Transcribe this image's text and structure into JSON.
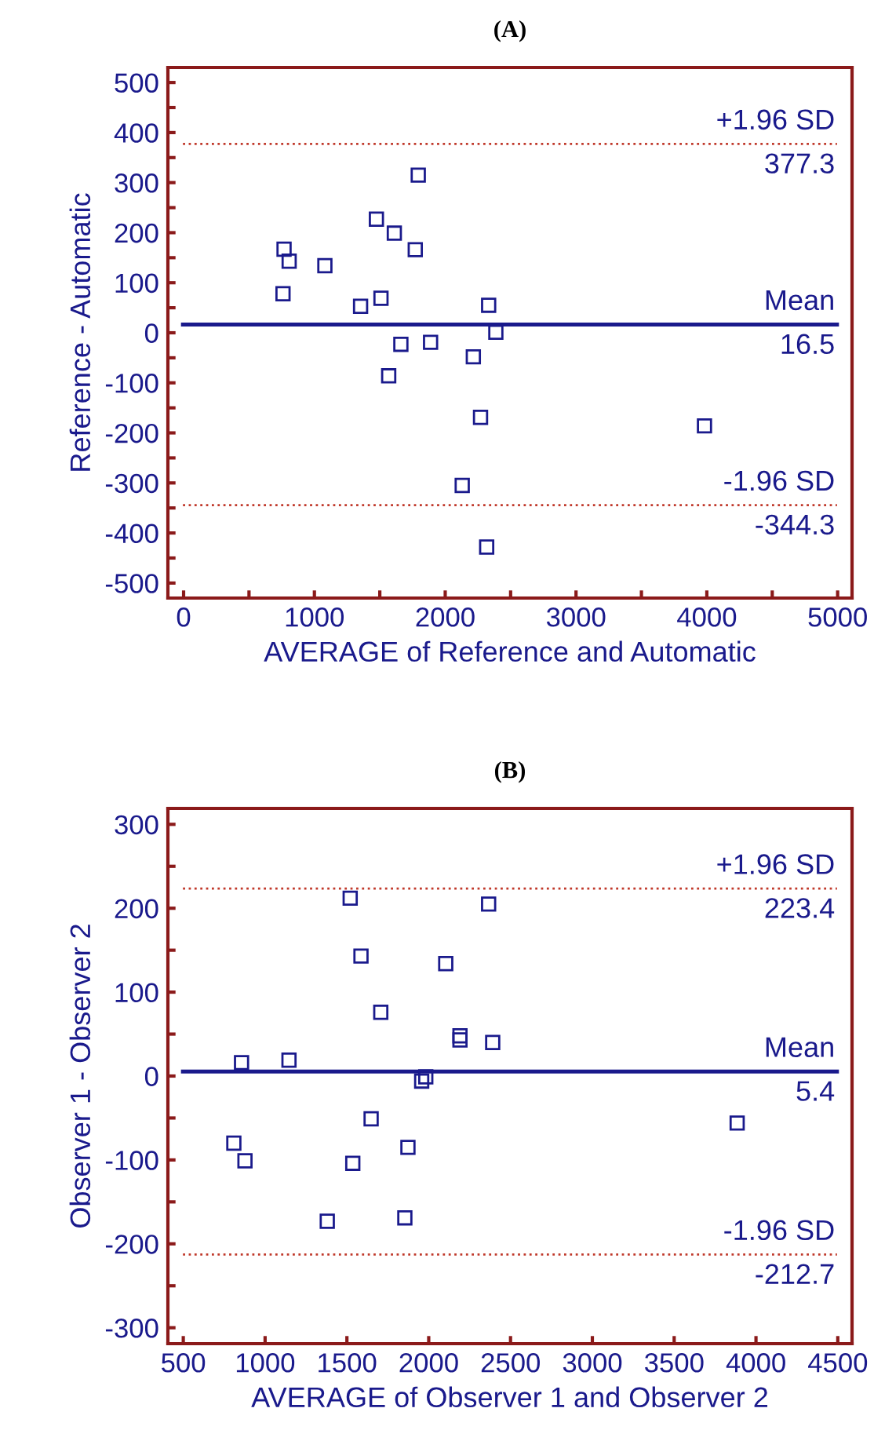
{
  "chart_data": [
    {
      "type": "scatter",
      "title": "(A)",
      "xlabel": "AVERAGE of Reference and Automatic",
      "ylabel": "Reference - Automatic",
      "marker": "square",
      "grid": false,
      "legend": false,
      "x": [
        768,
        807,
        1080,
        760,
        1353,
        1509,
        1474,
        1611,
        1771,
        1794,
        2332,
        2387,
        1661,
        1888,
        2215,
        1568,
        2270,
        2130,
        2317,
        3982
      ],
      "series": [
        {
          "color": "#1a1a8c",
          "values": [
            167,
            143,
            134,
            78,
            53,
            69,
            227,
            199,
            166,
            315,
            55,
            1,
            -23,
            -19,
            -48,
            -86,
            -169,
            -305,
            -428,
            -186
          ]
        }
      ],
      "xlim": [
        -120,
        5110
      ],
      "ylim": [
        -530,
        530
      ],
      "xticks": [
        0,
        {
          "value": 500,
          "label": null
        },
        1000,
        {
          "value": 1500,
          "label": null
        },
        2000,
        {
          "value": 2500,
          "label": null
        },
        3000,
        {
          "value": 3500,
          "label": null
        },
        4000,
        {
          "value": 4500,
          "label": null
        },
        5000
      ],
      "yticks": [
        {
          "value": -500,
          "label": "-500"
        },
        {
          "value": -450,
          "label": null
        },
        {
          "value": -400,
          "label": "-400"
        },
        {
          "value": -350,
          "label": null
        },
        {
          "value": -300,
          "label": "-300"
        },
        {
          "value": -250,
          "label": null
        },
        {
          "value": -200,
          "label": "-200"
        },
        {
          "value": -150,
          "label": null
        },
        {
          "value": -100,
          "label": "-100"
        },
        {
          "value": -50,
          "label": null
        },
        0,
        {
          "value": 50,
          "label": null
        },
        100,
        {
          "value": 150,
          "label": null
        },
        200,
        {
          "value": 250,
          "label": null
        },
        300,
        {
          "value": 350,
          "label": null
        },
        400,
        {
          "value": 450,
          "label": null
        },
        500
      ],
      "ref_lines": [
        {
          "axis": "y",
          "value": 377.3,
          "label": "+1.96 SD",
          "color": "#c0392b",
          "line_style": "dotted"
        },
        {
          "axis": "y",
          "value": 16.5,
          "label": "Mean",
          "color": "#1a1a8c",
          "line_style": "solid"
        },
        {
          "axis": "y",
          "value": -344.3,
          "label": "-1.96 SD",
          "color": "#c0392b",
          "line_style": "dotted"
        }
      ],
      "annotations": [
        "377.3",
        "16.5",
        "-344.3"
      ]
    },
    {
      "type": "scatter",
      "title": "(B)",
      "xlabel": "AVERAGE of Observer 1 and Observer 2",
      "ylabel": "Observer 1 - Observer 2",
      "marker": "square",
      "grid": false,
      "legend": false,
      "x": [
        1520,
        2366,
        1586,
        2104,
        1707,
        2191,
        2191,
        2391,
        856,
        1146,
        1982,
        1957,
        1648,
        3885,
        809,
        877,
        1536,
        1873,
        1380,
        1854
      ],
      "series": [
        {
          "color": "#1a1a8c",
          "values": [
            212,
            205,
            143,
            134,
            76,
            48,
            43,
            40,
            16,
            19,
            -1,
            -6,
            -51,
            -56,
            -80,
            -101,
            -104,
            -85,
            -173,
            -169
          ]
        }
      ],
      "xlim": [
        406,
        4587
      ],
      "ylim": [
        -319,
        319
      ],
      "xticks": [
        500,
        1000,
        1500,
        2000,
        2500,
        3000,
        3500,
        4000,
        4500
      ],
      "yticks": [
        {
          "value": -300,
          "label": "-300"
        },
        {
          "value": -250,
          "label": null
        },
        {
          "value": -200,
          "label": "-200"
        },
        {
          "value": -150,
          "label": null
        },
        {
          "value": -100,
          "label": "-100"
        },
        {
          "value": -50,
          "label": null
        },
        0,
        {
          "value": 50,
          "label": null
        },
        100,
        {
          "value": 150,
          "label": null
        },
        200,
        {
          "value": 250,
          "label": null
        },
        300
      ],
      "ref_lines": [
        {
          "axis": "y",
          "value": 223.4,
          "label": "+1.96 SD",
          "color": "#c0392b",
          "line_style": "dotted"
        },
        {
          "axis": "y",
          "value": 5.4,
          "label": "Mean",
          "color": "#1a1a8c",
          "line_style": "solid"
        },
        {
          "axis": "y",
          "value": -212.7,
          "label": "-1.96 SD",
          "color": "#c0392b",
          "line_style": "dotted"
        }
      ],
      "annotations": [
        "223.4",
        "5.4",
        "-212.7"
      ]
    }
  ]
}
